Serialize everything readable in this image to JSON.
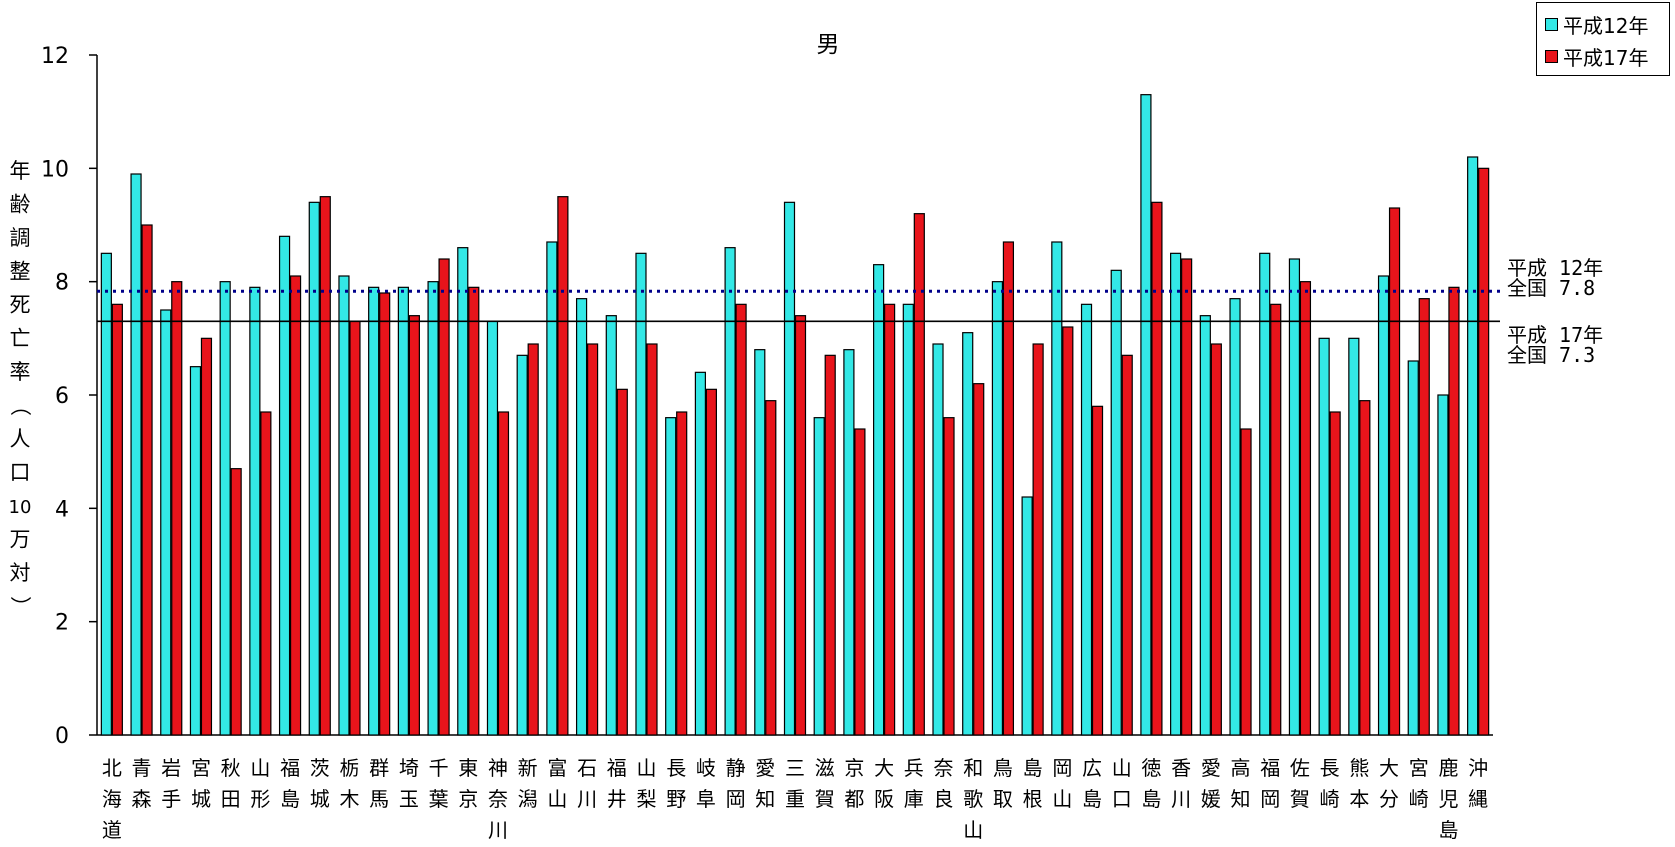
{
  "chart_data": {
    "type": "bar",
    "title": "男",
    "ylabel": "年齢調整死亡率（人口10万対）",
    "xlabel": "",
    "ylim": [
      0,
      12
    ],
    "yticks": [
      "0",
      "2",
      "4",
      "6",
      "8",
      "10",
      "12"
    ],
    "grid": false,
    "legend_position": "top-right",
    "categories": [
      "北海道",
      "青森",
      "岩手",
      "宮城",
      "秋田",
      "山形",
      "福島",
      "茨城",
      "栃木",
      "群馬",
      "埼玉",
      "千葉",
      "東京",
      "神奈川",
      "新潟",
      "富山",
      "石川",
      "福井",
      "山梨",
      "長野",
      "岐阜",
      "静岡",
      "愛知",
      "三重",
      "滋賀",
      "京都",
      "大阪",
      "兵庫",
      "奈良",
      "和歌山",
      "鳥取",
      "島根",
      "岡山",
      "広島",
      "山口",
      "徳島",
      "香川",
      "愛媛",
      "高知",
      "福岡",
      "佐賀",
      "長崎",
      "熊本",
      "大分",
      "宮崎",
      "鹿児島",
      "沖縄"
    ],
    "series": [
      {
        "name": "平成12年",
        "color": "#33E8E6",
        "values": [
          8.5,
          9.9,
          7.5,
          6.5,
          8.0,
          7.9,
          8.8,
          9.4,
          8.1,
          7.9,
          7.9,
          8.0,
          8.6,
          7.3,
          6.7,
          8.7,
          7.7,
          7.4,
          8.5,
          5.6,
          6.4,
          8.6,
          6.8,
          9.4,
          5.6,
          6.8,
          8.3,
          7.6,
          6.9,
          7.1,
          8.0,
          4.2,
          8.7,
          7.6,
          8.2,
          11.3,
          8.5,
          7.4,
          7.7,
          8.5,
          8.4,
          7.0,
          7.0,
          8.1,
          6.6,
          6.0,
          10.2
        ]
      },
      {
        "name": "平成17年",
        "color": "#E8141B",
        "values": [
          7.6,
          9.0,
          8.0,
          7.0,
          4.7,
          5.7,
          8.1,
          9.5,
          7.3,
          7.8,
          7.4,
          8.4,
          7.9,
          5.7,
          6.9,
          9.5,
          6.9,
          6.1,
          6.9,
          5.7,
          6.1,
          7.6,
          5.9,
          7.4,
          6.7,
          5.4,
          7.6,
          9.2,
          5.6,
          6.2,
          8.7,
          6.9,
          7.2,
          5.8,
          6.7,
          9.4,
          8.4,
          6.9,
          5.4,
          7.6,
          8.0,
          5.7,
          5.9,
          9.3,
          7.7,
          7.9,
          10.0
        ]
      }
    ],
    "reference_lines": [
      {
        "label": "平成 12年\n全国 7.8",
        "value": 7.83,
        "style": "dotted",
        "color": "#00008B"
      },
      {
        "label": "平成 17年\n全国 7.3",
        "value": 7.3,
        "style": "solid",
        "color": "#000000"
      }
    ]
  }
}
